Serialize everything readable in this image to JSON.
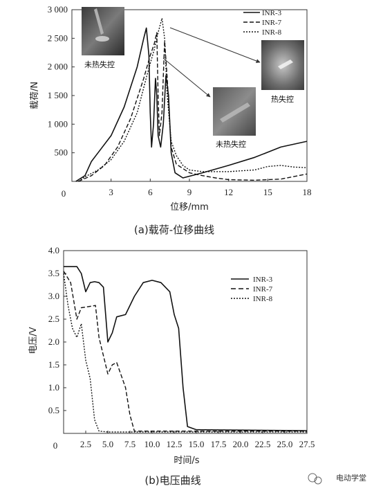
{
  "chart_data": [
    {
      "type": "line",
      "caption": "(a)载荷-位移曲线",
      "xlabel": "位移/mm",
      "ylabel": "载荷/N",
      "xlim": [
        0,
        18
      ],
      "ylim": [
        0,
        3000
      ],
      "xticks": [
        "0",
        "3",
        "6",
        "9",
        "12",
        "15",
        "18"
      ],
      "yticks": [
        "500",
        "1 000",
        "1 500",
        "2 000",
        "2 500",
        "3 000"
      ],
      "legend_position": "top-right",
      "series": [
        {
          "name": "INR-3",
          "style": "solid",
          "points": [
            [
              0.3,
              0
            ],
            [
              1,
              100
            ],
            [
              1.5,
              350
            ],
            [
              2,
              500
            ],
            [
              3,
              800
            ],
            [
              4,
              1300
            ],
            [
              5,
              2000
            ],
            [
              5.5,
              2500
            ],
            [
              5.7,
              2680
            ],
            [
              5.9,
              2200
            ],
            [
              6.0,
              1200
            ],
            [
              6.1,
              600
            ],
            [
              6.25,
              1000
            ],
            [
              6.4,
              1800
            ],
            [
              6.5,
              1500
            ],
            [
              6.6,
              800
            ],
            [
              6.8,
              600
            ],
            [
              7.0,
              1000
            ],
            [
              7.2,
              1850
            ],
            [
              7.4,
              1500
            ],
            [
              7.6,
              500
            ],
            [
              7.9,
              150
            ],
            [
              8.5,
              60
            ],
            [
              10,
              150
            ],
            [
              12,
              280
            ],
            [
              14,
              420
            ],
            [
              16,
              600
            ],
            [
              18,
              700
            ]
          ]
        },
        {
          "name": "INR-7",
          "style": "dash",
          "points": [
            [
              0.5,
              0
            ],
            [
              1.5,
              100
            ],
            [
              2.5,
              280
            ],
            [
              3.5,
              600
            ],
            [
              4.5,
              1100
            ],
            [
              5.5,
              1800
            ],
            [
              6.0,
              2200
            ],
            [
              6.3,
              2400
            ],
            [
              6.5,
              2600
            ],
            [
              6.6,
              1500
            ],
            [
              6.7,
              800
            ],
            [
              6.9,
              1200
            ],
            [
              7.1,
              2450
            ],
            [
              7.3,
              1800
            ],
            [
              7.6,
              600
            ],
            [
              8,
              300
            ],
            [
              9,
              150
            ],
            [
              10,
              100
            ],
            [
              11,
              60
            ],
            [
              12,
              30
            ],
            [
              14,
              20
            ],
            [
              16,
              40
            ],
            [
              18,
              130
            ]
          ]
        },
        {
          "name": "INR-8",
          "style": "dot",
          "points": [
            [
              0.5,
              0
            ],
            [
              1,
              80
            ],
            [
              2,
              200
            ],
            [
              3,
              380
            ],
            [
              4,
              700
            ],
            [
              5,
              1200
            ],
            [
              5.8,
              1900
            ],
            [
              6.3,
              2300
            ],
            [
              6.6,
              2600
            ],
            [
              6.9,
              2850
            ],
            [
              7.1,
              2500
            ],
            [
              7.3,
              1500
            ],
            [
              7.6,
              700
            ],
            [
              8,
              450
            ],
            [
              8.5,
              280
            ],
            [
              9,
              200
            ],
            [
              10,
              170
            ],
            [
              12,
              170
            ],
            [
              14,
              200
            ],
            [
              15,
              260
            ],
            [
              16,
              280
            ],
            [
              17,
              250
            ],
            [
              18,
              240
            ]
          ]
        }
      ],
      "annotations": [
        {
          "label": "未热失控"
        },
        {
          "label": "热失控"
        },
        {
          "label": "未热失控"
        }
      ]
    },
    {
      "type": "line",
      "caption": "(b)电压曲线",
      "xlabel": "时间/s",
      "ylabel": "电压/V",
      "xlim": [
        0,
        27.5
      ],
      "ylim": [
        0,
        4.0
      ],
      "xticks": [
        "0",
        "2.5",
        "5.0",
        "7.5",
        "10.0",
        "12.5",
        "15.0",
        "17.5",
        "20.0",
        "22.5",
        "25.0",
        "27.5"
      ],
      "yticks": [
        "0.5",
        "1.0",
        "1.5",
        "2.0",
        "2.5",
        "3.0",
        "3.5",
        "4.0"
      ],
      "legend_position": "top-right",
      "series": [
        {
          "name": "INR-3",
          "style": "solid",
          "points": [
            [
              0,
              3.65
            ],
            [
              1.5,
              3.65
            ],
            [
              2,
              3.5
            ],
            [
              2.5,
              3.1
            ],
            [
              3,
              3.3
            ],
            [
              3.5,
              3.32
            ],
            [
              4,
              3.3
            ],
            [
              4.5,
              3.2
            ],
            [
              5,
              2.0
            ],
            [
              5.5,
              2.2
            ],
            [
              6,
              2.55
            ],
            [
              7,
              2.6
            ],
            [
              8,
              3.0
            ],
            [
              9,
              3.3
            ],
            [
              10,
              3.35
            ],
            [
              11,
              3.3
            ],
            [
              12,
              3.1
            ],
            [
              12.5,
              2.6
            ],
            [
              13,
              2.3
            ],
            [
              13.5,
              1.0
            ],
            [
              14,
              0.15
            ],
            [
              15,
              0.08
            ],
            [
              27.5,
              0.06
            ]
          ]
        },
        {
          "name": "INR-7",
          "style": "dash",
          "points": [
            [
              0,
              3.55
            ],
            [
              0.8,
              3.3
            ],
            [
              1.5,
              2.5
            ],
            [
              2,
              2.75
            ],
            [
              3,
              2.78
            ],
            [
              3.6,
              2.8
            ],
            [
              4,
              2.1
            ],
            [
              5,
              1.3
            ],
            [
              5.5,
              1.5
            ],
            [
              6,
              1.55
            ],
            [
              7,
              1.0
            ],
            [
              7.5,
              0.4
            ],
            [
              8,
              0.05
            ],
            [
              10,
              0.05
            ],
            [
              27.5,
              0.05
            ]
          ]
        },
        {
          "name": "INR-8",
          "style": "dot",
          "points": [
            [
              0,
              3.5
            ],
            [
              0.5,
              2.8
            ],
            [
              1,
              2.3
            ],
            [
              1.5,
              2.1
            ],
            [
              2,
              2.4
            ],
            [
              2.5,
              1.6
            ],
            [
              3,
              1.2
            ],
            [
              3.5,
              0.3
            ],
            [
              4,
              0.05
            ],
            [
              5,
              0.03
            ],
            [
              27.5,
              0.03
            ]
          ]
        }
      ]
    }
  ],
  "watermark": {
    "text": "电动学堂"
  }
}
